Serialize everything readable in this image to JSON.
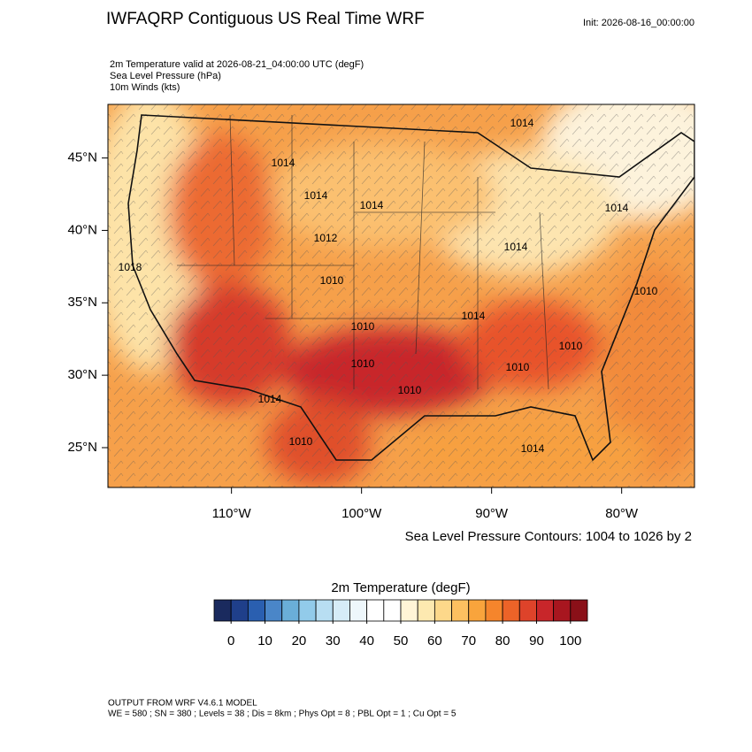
{
  "header": {
    "title": "IWFAQRP Contiguous US Real Time WRF",
    "init": "Init: 2026-08-16_00:00:00",
    "fields": [
      "2m Temperature valid at 2026-08-21_04:00:00 UTC   (degF)",
      "Sea Level Pressure   (hPa)",
      "10m Winds   (kts)"
    ]
  },
  "map": {
    "lon_lim": [
      -119.5,
      -74.4
    ],
    "lat_lim": [
      22.25,
      48.7
    ],
    "lon_ticks": [
      {
        "value": -110,
        "label": "110°W"
      },
      {
        "value": -100,
        "label": "100°W"
      },
      {
        "value": -90,
        "label": "90°W"
      },
      {
        "value": -80,
        "label": "80°W"
      }
    ],
    "lat_ticks": [
      {
        "value": 45,
        "label": "45°N"
      },
      {
        "value": 40,
        "label": "40°N"
      },
      {
        "value": 35,
        "label": "35°N"
      },
      {
        "value": 30,
        "label": "30°N"
      },
      {
        "value": 25,
        "label": "25°N"
      }
    ],
    "contour_labels": [
      "1014",
      "1014",
      "1014",
      "1014",
      "1014",
      "1012",
      "1014",
      "1018",
      "1010",
      "1010",
      "1014",
      "1010",
      "1010",
      "1010",
      "1010",
      "1010",
      "1014",
      "1010",
      "1014"
    ],
    "contour_note": "Sea Level Pressure Contours: 1004 to 1026 by 2"
  },
  "colorbar": {
    "title": "2m Temperature  (degF)",
    "lim": [
      -5,
      105
    ],
    "ticks": [
      0,
      10,
      20,
      30,
      40,
      50,
      60,
      70,
      80,
      90,
      100
    ],
    "colors": [
      "#1a2a5e",
      "#1f3f8a",
      "#2a5fb0",
      "#4a86c8",
      "#6aaed8",
      "#92cbea",
      "#b8def2",
      "#d6ecf7",
      "#eef7fb",
      "#ffffff",
      "#ffffff",
      "#fff5d6",
      "#fde9b0",
      "#fdd88a",
      "#fcc060",
      "#f9a43c",
      "#f5852c",
      "#ec6328",
      "#de432a",
      "#c8262a",
      "#a8161f",
      "#8a1018"
    ]
  },
  "footer": [
    "OUTPUT FROM WRF V4.6.1 MODEL",
    "WE = 580 ; SN = 380 ; Levels = 38 ; Dis = 8km ; Phys Opt = 8 ; PBL Opt = 1 ; Cu Opt = 5"
  ]
}
